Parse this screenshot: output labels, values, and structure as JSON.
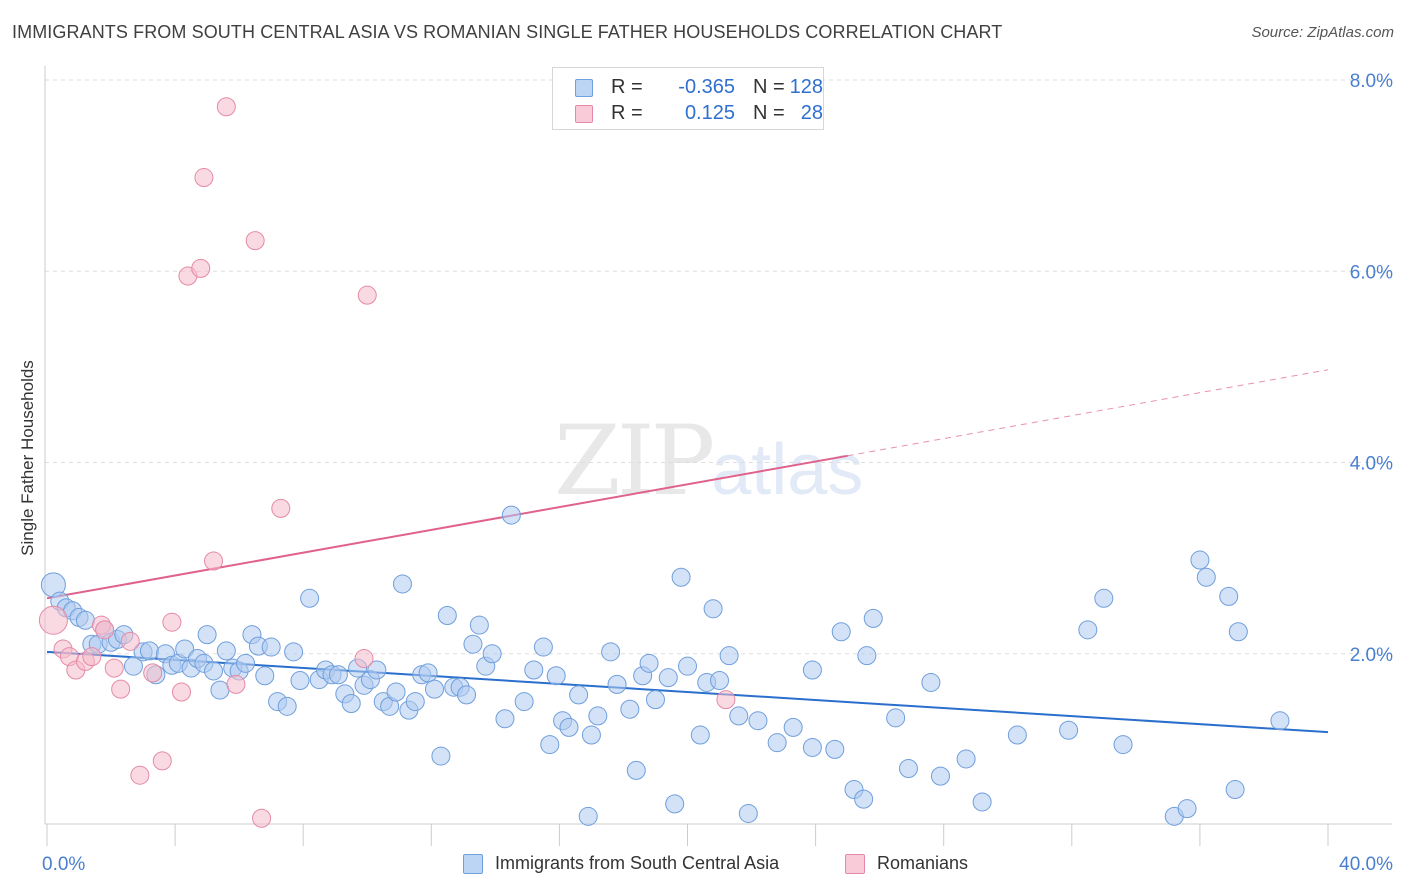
{
  "title": "IMMIGRANTS FROM SOUTH CENTRAL ASIA VS ROMANIAN SINGLE FATHER HOUSEHOLDS CORRELATION CHART",
  "source": "Source: ZipAtlas.com",
  "watermark": {
    "zip": "ZIP",
    "atlas": "atlas"
  },
  "legend_top": [
    {
      "r_label": "R =",
      "r_value": "-0.365",
      "n_label": "N =",
      "n_value": "128"
    },
    {
      "r_label": "R =",
      "r_value": "0.125",
      "n_label": "N =",
      "n_value": "28"
    }
  ],
  "colors": {
    "blue_fill": "#aecbf0",
    "blue_stroke": "#6f9fdc",
    "blue_line": "#2a6fcc",
    "pink_fill": "#f6bccb",
    "pink_stroke": "#e58aa6",
    "pink_line": "#e0628c",
    "axis_text": "#4a7fd0",
    "grid": "#dddddd"
  },
  "chart_data": {
    "type": "scatter",
    "title": "IMMIGRANTS FROM SOUTH CENTRAL ASIA VS ROMANIAN SINGLE FATHER HOUSEHOLDS CORRELATION CHART",
    "xlabel": "",
    "ylabel": "Single Father Households",
    "xlim": [
      0,
      40
    ],
    "ylim": [
      0,
      8.4
    ],
    "x_tick_labels": [
      {
        "value": 0,
        "label": "0.0%"
      },
      {
        "value": 40,
        "label": "40.0%"
      }
    ],
    "y_tick_labels": [
      {
        "value": 2,
        "label": "2.0%"
      },
      {
        "value": 4,
        "label": "4.0%"
      },
      {
        "value": 6,
        "label": "6.0%"
      },
      {
        "value": 8,
        "label": "8.0%"
      }
    ],
    "grid": true,
    "legend_position": "bottom",
    "series": [
      {
        "name": "Immigrants from South Central Asia",
        "color": "#aecbf0",
        "r": -0.365,
        "n": 128,
        "trend": {
          "x": [
            0,
            40
          ],
          "y": [
            2.02,
            1.18
          ]
        },
        "points": [
          [
            0.2,
            2.72
          ],
          [
            0.4,
            2.55
          ],
          [
            0.6,
            2.48
          ],
          [
            0.8,
            2.45
          ],
          [
            1.0,
            2.38
          ],
          [
            1.2,
            2.35
          ],
          [
            1.4,
            2.1
          ],
          [
            1.6,
            2.1
          ],
          [
            1.8,
            2.25
          ],
          [
            2.0,
            2.12
          ],
          [
            2.2,
            2.15
          ],
          [
            2.4,
            2.2
          ],
          [
            2.7,
            1.87
          ],
          [
            3.0,
            2.02
          ],
          [
            3.2,
            2.03
          ],
          [
            3.4,
            1.78
          ],
          [
            3.7,
            2.0
          ],
          [
            3.9,
            1.88
          ],
          [
            4.1,
            1.9
          ],
          [
            4.3,
            2.05
          ],
          [
            4.5,
            1.85
          ],
          [
            4.7,
            1.95
          ],
          [
            4.9,
            1.9
          ],
          [
            5.0,
            2.2
          ],
          [
            5.2,
            1.82
          ],
          [
            5.4,
            1.62
          ],
          [
            5.6,
            2.03
          ],
          [
            5.8,
            1.85
          ],
          [
            6.0,
            1.82
          ],
          [
            6.2,
            1.9
          ],
          [
            6.4,
            2.2
          ],
          [
            6.6,
            2.08
          ],
          [
            6.8,
            1.77
          ],
          [
            7.0,
            2.07
          ],
          [
            7.2,
            1.5
          ],
          [
            7.5,
            1.45
          ],
          [
            7.7,
            2.02
          ],
          [
            7.9,
            1.72
          ],
          [
            8.2,
            2.58
          ],
          [
            8.5,
            1.73
          ],
          [
            8.7,
            1.83
          ],
          [
            8.9,
            1.78
          ],
          [
            9.1,
            1.78
          ],
          [
            9.3,
            1.58
          ],
          [
            9.5,
            1.48
          ],
          [
            9.7,
            1.85
          ],
          [
            9.9,
            1.67
          ],
          [
            10.1,
            1.73
          ],
          [
            10.3,
            1.83
          ],
          [
            10.5,
            1.5
          ],
          [
            10.7,
            1.45
          ],
          [
            10.9,
            1.6
          ],
          [
            11.1,
            2.73
          ],
          [
            11.3,
            1.41
          ],
          [
            11.5,
            1.5
          ],
          [
            11.7,
            1.78
          ],
          [
            11.9,
            1.8
          ],
          [
            12.1,
            1.63
          ],
          [
            12.3,
            0.93
          ],
          [
            12.5,
            2.4
          ],
          [
            12.7,
            1.65
          ],
          [
            12.9,
            1.65
          ],
          [
            13.1,
            1.57
          ],
          [
            13.3,
            2.1
          ],
          [
            13.5,
            2.3
          ],
          [
            13.7,
            1.87
          ],
          [
            13.9,
            2.0
          ],
          [
            14.3,
            1.32
          ],
          [
            14.5,
            3.45
          ],
          [
            14.9,
            1.5
          ],
          [
            15.2,
            1.83
          ],
          [
            15.5,
            2.07
          ],
          [
            15.7,
            1.05
          ],
          [
            15.9,
            1.77
          ],
          [
            16.1,
            1.3
          ],
          [
            16.3,
            1.23
          ],
          [
            16.6,
            1.57
          ],
          [
            16.9,
            0.3
          ],
          [
            17.0,
            1.15
          ],
          [
            17.2,
            1.35
          ],
          [
            17.6,
            2.02
          ],
          [
            17.8,
            1.68
          ],
          [
            18.2,
            1.42
          ],
          [
            18.4,
            0.78
          ],
          [
            18.6,
            1.77
          ],
          [
            18.8,
            1.9
          ],
          [
            19.0,
            1.52
          ],
          [
            19.4,
            1.75
          ],
          [
            19.6,
            0.43
          ],
          [
            19.8,
            2.8
          ],
          [
            20.0,
            1.87
          ],
          [
            20.4,
            1.15
          ],
          [
            20.6,
            1.7
          ],
          [
            20.8,
            2.47
          ],
          [
            21.0,
            1.72
          ],
          [
            21.3,
            1.98
          ],
          [
            21.6,
            1.35
          ],
          [
            21.9,
            0.33
          ],
          [
            22.2,
            1.3
          ],
          [
            22.8,
            1.07
          ],
          [
            23.3,
            1.23
          ],
          [
            23.9,
            1.83
          ],
          [
            23.9,
            1.02
          ],
          [
            24.6,
            1.0
          ],
          [
            24.8,
            2.23
          ],
          [
            25.2,
            0.58
          ],
          [
            25.5,
            0.48
          ],
          [
            25.6,
            1.98
          ],
          [
            25.8,
            2.37
          ],
          [
            26.5,
            1.33
          ],
          [
            26.9,
            0.8
          ],
          [
            27.6,
            1.7
          ],
          [
            27.9,
            0.72
          ],
          [
            28.7,
            0.9
          ],
          [
            29.2,
            0.45
          ],
          [
            30.3,
            1.15
          ],
          [
            31.9,
            1.2
          ],
          [
            32.5,
            2.25
          ],
          [
            33.0,
            2.58
          ],
          [
            33.6,
            1.05
          ],
          [
            35.2,
            0.3
          ],
          [
            35.6,
            0.38
          ],
          [
            36.0,
            2.98
          ],
          [
            36.2,
            2.8
          ],
          [
            36.9,
            2.6
          ],
          [
            37.1,
            0.58
          ],
          [
            37.2,
            2.23
          ],
          [
            38.5,
            1.3
          ]
        ]
      },
      {
        "name": "Romanians",
        "color": "#f6bccb",
        "r": 0.125,
        "n": 28,
        "trend": {
          "x": [
            0,
            25
          ],
          "y": [
            2.58,
            4.07
          ]
        },
        "trend_dashed": {
          "x": [
            25,
            40
          ],
          "y": [
            4.07,
            4.97
          ]
        },
        "points": [
          [
            0.2,
            2.35
          ],
          [
            0.5,
            2.05
          ],
          [
            0.7,
            1.97
          ],
          [
            0.9,
            1.83
          ],
          [
            1.2,
            1.92
          ],
          [
            1.4,
            1.97
          ],
          [
            1.7,
            2.3
          ],
          [
            1.8,
            2.25
          ],
          [
            2.1,
            1.85
          ],
          [
            2.3,
            1.63
          ],
          [
            2.6,
            2.13
          ],
          [
            2.9,
            0.73
          ],
          [
            3.3,
            1.8
          ],
          [
            3.6,
            0.88
          ],
          [
            3.9,
            2.33
          ],
          [
            4.2,
            1.6
          ],
          [
            4.4,
            5.95
          ],
          [
            4.8,
            6.03
          ],
          [
            4.9,
            6.98
          ],
          [
            5.2,
            2.97
          ],
          [
            5.6,
            7.72
          ],
          [
            5.9,
            1.68
          ],
          [
            6.5,
            6.32
          ],
          [
            6.7,
            0.28
          ],
          [
            7.3,
            3.52
          ],
          [
            9.9,
            1.95
          ],
          [
            10.0,
            5.75
          ],
          [
            21.2,
            1.52
          ]
        ]
      }
    ]
  }
}
